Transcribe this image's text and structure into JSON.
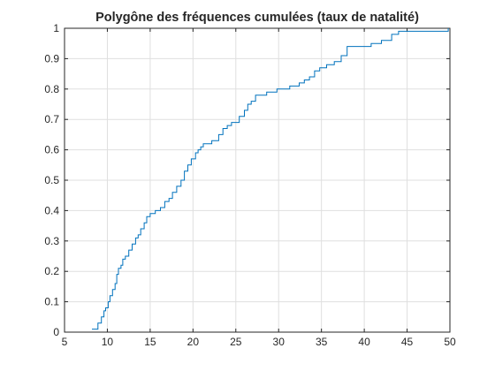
{
  "chart_data": {
    "type": "line",
    "step": true,
    "title": "Polygône des fréquences cumulées (taux de natalité)",
    "xlabel": "",
    "ylabel": "",
    "xlim": [
      5,
      50
    ],
    "ylim": [
      0,
      1
    ],
    "x_ticks": [
      5,
      10,
      15,
      20,
      25,
      30,
      35,
      40,
      45,
      50
    ],
    "y_ticks": [
      0,
      0.1,
      0.2,
      0.3,
      0.4,
      0.5,
      0.6,
      0.7,
      0.8,
      0.9,
      1
    ],
    "x_tick_labels": [
      "5",
      "10",
      "15",
      "20",
      "25",
      "30",
      "35",
      "40",
      "45",
      "50"
    ],
    "y_tick_labels": [
      "0",
      "0.1",
      "0.2",
      "0.3",
      "0.4",
      "0.5",
      "0.6",
      "0.7",
      "0.8",
      "0.9",
      "1"
    ],
    "grid": true,
    "line_color": "#0072bd",
    "series": [
      {
        "x": [
          8.2,
          8.9,
          9.3,
          9.6,
          9.8,
          10.1,
          10.3,
          10.6,
          10.9,
          11.1,
          11.3,
          11.6,
          11.8,
          12.1,
          12.5,
          12.9,
          13.3,
          13.6,
          13.9,
          14.3,
          14.6,
          15.0,
          15.3,
          15.6,
          16.2,
          16.7,
          17.2,
          17.6,
          18.1,
          18.6,
          19.0,
          19.4,
          19.8,
          20.3,
          20.6,
          20.9,
          21.2,
          21.6,
          22.2,
          23.0,
          23.5,
          24.0,
          24.5,
          25.4,
          26.0,
          26.4,
          26.8,
          27.3,
          28.6,
          29.8,
          31.3,
          32.4,
          33.0,
          33.6,
          34.2,
          34.8,
          35.6,
          36.5,
          37.3,
          38.0,
          40.8,
          42.0,
          43.2,
          44.0,
          45.8,
          49.0,
          49.8
        ],
        "y": [
          0.01,
          0.03,
          0.05,
          0.07,
          0.08,
          0.1,
          0.12,
          0.14,
          0.16,
          0.19,
          0.21,
          0.22,
          0.24,
          0.25,
          0.27,
          0.29,
          0.31,
          0.32,
          0.34,
          0.36,
          0.38,
          0.39,
          0.39,
          0.4,
          0.41,
          0.43,
          0.44,
          0.46,
          0.48,
          0.5,
          0.53,
          0.55,
          0.57,
          0.59,
          0.6,
          0.61,
          0.62,
          0.62,
          0.63,
          0.65,
          0.67,
          0.68,
          0.69,
          0.71,
          0.73,
          0.75,
          0.76,
          0.78,
          0.79,
          0.8,
          0.81,
          0.82,
          0.83,
          0.84,
          0.86,
          0.87,
          0.88,
          0.89,
          0.91,
          0.94,
          0.95,
          0.96,
          0.98,
          0.99,
          0.99,
          0.99,
          1.0
        ]
      }
    ]
  }
}
